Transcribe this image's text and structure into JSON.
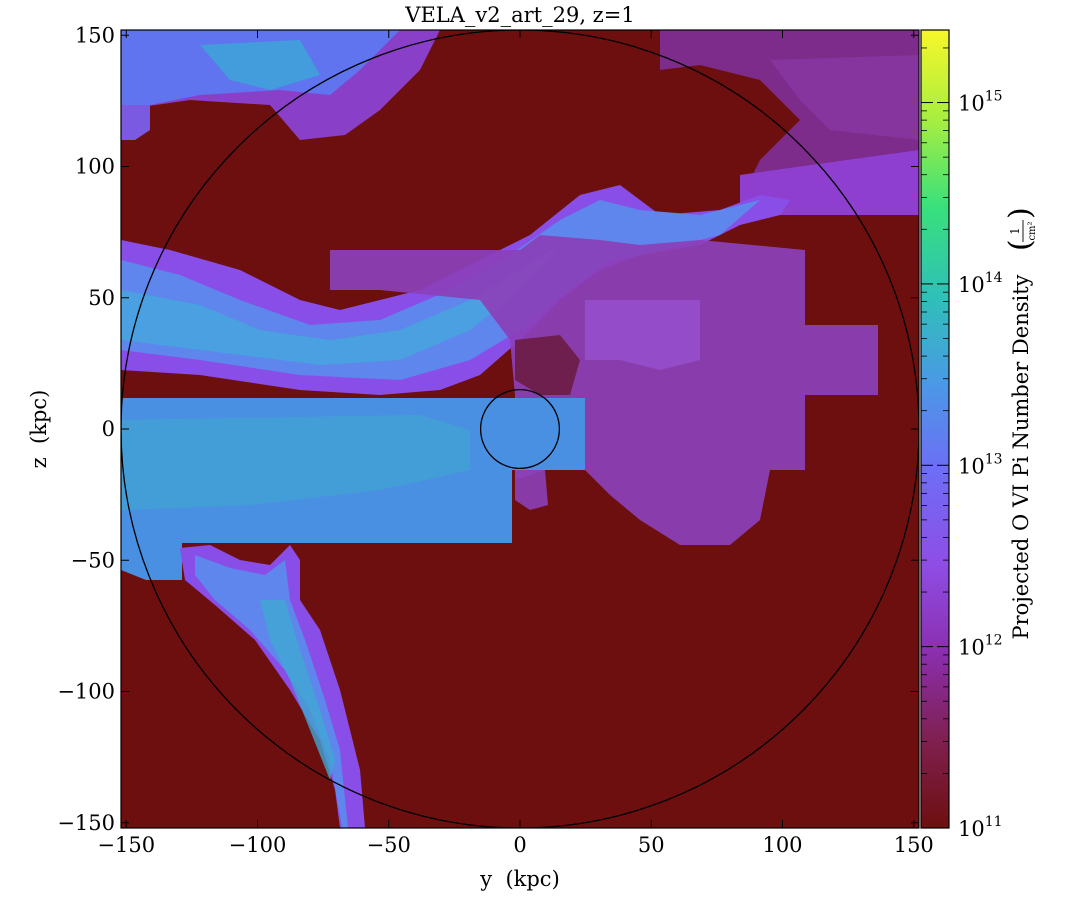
{
  "chart_data": {
    "type": "heatmap",
    "title": "VELA_v2_art_29, z=1",
    "xlabel": "y  (kpc)",
    "ylabel": "z  (kpc)",
    "xlim": [
      -152,
      152
    ],
    "ylim": [
      -152,
      152
    ],
    "x_ticks": [
      -150,
      -100,
      -50,
      0,
      50,
      100,
      150
    ],
    "y_ticks": [
      -150,
      -100,
      -50,
      0,
      50,
      100,
      150
    ],
    "x_tick_labels": [
      "−150",
      "−100",
      "−50",
      "0",
      "50",
      "100",
      "150"
    ],
    "y_tick_labels": [
      "−150",
      "−100",
      "−50",
      "0",
      "50",
      "100",
      "150"
    ],
    "colorbar": {
      "label": "Projected O VI Pi Number Density",
      "unit_numerator": "1",
      "unit_denominator": "cm²",
      "scale": "log",
      "range_exponents": [
        11,
        15.4
      ],
      "tick_base": "10",
      "tick_exponents": [
        "11",
        "12",
        "13",
        "14",
        "15"
      ],
      "colormap": [
        "#6e0f0f",
        "#7f2050",
        "#8b2fb0",
        "#8e4ee6",
        "#6f6cf6",
        "#4b98e6",
        "#2fc0b8",
        "#38e07c",
        "#a8ee40",
        "#f7f72a"
      ]
    },
    "background_value_log": 11,
    "circles": [
      {
        "cx": 0,
        "cy": 0,
        "r": 152
      },
      {
        "cx": 0,
        "cy": 0,
        "r": 15
      }
    ]
  }
}
